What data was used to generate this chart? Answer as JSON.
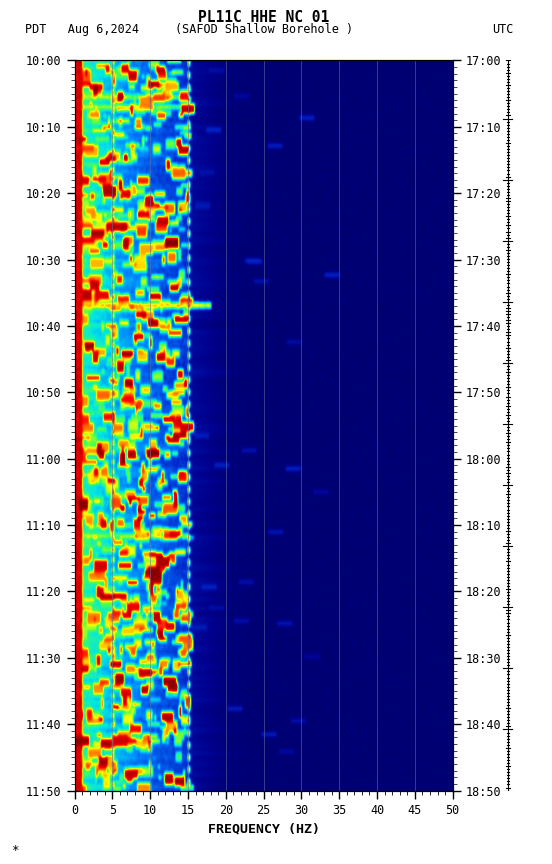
{
  "title_line1": "PL11C HHE NC 01",
  "title_line2_left": "PDT   Aug 6,2024",
  "title_line2_center": "(SAFOD Shallow Borehole )",
  "title_line2_right": "UTC",
  "xlabel": "FREQUENCY (HZ)",
  "freq_min": 0,
  "freq_max": 50,
  "freq_ticks": [
    0,
    5,
    10,
    15,
    20,
    25,
    30,
    35,
    40,
    45,
    50
  ],
  "time_labels_left": [
    "10:00",
    "10:10",
    "10:20",
    "10:30",
    "10:40",
    "10:50",
    "11:00",
    "11:10",
    "11:20",
    "11:30",
    "11:40",
    "11:50"
  ],
  "time_labels_right": [
    "17:00",
    "17:10",
    "17:20",
    "17:30",
    "17:40",
    "17:50",
    "18:00",
    "18:10",
    "18:20",
    "18:30",
    "18:40",
    "18:50"
  ],
  "background_color": "#ffffff",
  "fig_width": 5.52,
  "fig_height": 8.64,
  "dpi": 100,
  "vgrid_color": "#6070a0",
  "vgrid_positions": [
    5,
    10,
    15,
    20,
    25,
    30,
    35,
    40,
    45,
    50
  ]
}
